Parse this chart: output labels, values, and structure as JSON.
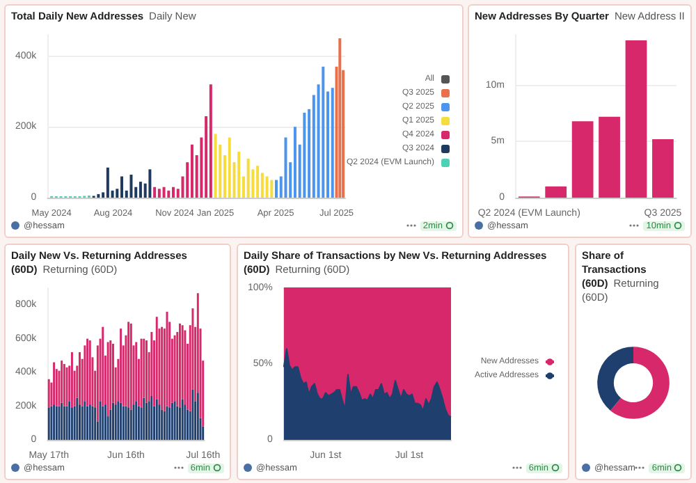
{
  "chart_data": [
    {
      "type": "bar",
      "title": "Total Daily New Addresses",
      "subtitle": "Daily New",
      "annotations": [
        "@hessam",
        "2min"
      ],
      "xlim": [
        "2024-04-25",
        "2025-07-14"
      ],
      "xticks": [
        {
          "value": "2024-05-01",
          "label": "May 2024"
        },
        {
          "value": "2024-08-01",
          "label": "Aug 2024"
        },
        {
          "value": "2024-11-01",
          "label": "Nov 2024"
        },
        {
          "value": "2025-01-01",
          "label": "Jan 2025"
        },
        {
          "value": "2025-04-01",
          "label": "Apr 2025"
        },
        {
          "value": "2025-07-01",
          "label": "Jul 2025"
        }
      ],
      "ylim": [
        0,
        460000
      ],
      "yticks": [
        {
          "value": 0,
          "label": "0"
        },
        {
          "value": 200000,
          "label": "200k"
        },
        {
          "value": 400000,
          "label": "400k"
        }
      ],
      "grid": "y",
      "legend": "right",
      "series": [
        {
          "name": "All",
          "color": "#555555"
        },
        {
          "name": "Q3 2025",
          "color": "#e8704a",
          "x": [
            "2025-07-01",
            "2025-07-06",
            "2025-07-11"
          ],
          "values": [
            370000,
            450000,
            360000
          ]
        },
        {
          "name": "Q2 2025",
          "color": "#4c94ec",
          "x": [
            "2025-04-02",
            "2025-04-09",
            "2025-04-16",
            "2025-04-23",
            "2025-04-30",
            "2025-05-07",
            "2025-05-14",
            "2025-05-21",
            "2025-05-28",
            "2025-06-04",
            "2025-06-11",
            "2025-06-18",
            "2025-06-25"
          ],
          "values": [
            50000,
            60000,
            170000,
            100000,
            200000,
            150000,
            240000,
            250000,
            290000,
            320000,
            370000,
            300000,
            310000
          ]
        },
        {
          "name": "Q1 2025",
          "color": "#f6dc3c",
          "x": [
            "2025-01-01",
            "2025-01-08",
            "2025-01-15",
            "2025-01-22",
            "2025-01-29",
            "2025-02-05",
            "2025-02-12",
            "2025-02-19",
            "2025-02-26",
            "2025-03-05",
            "2025-03-12",
            "2025-03-19",
            "2025-03-26"
          ],
          "values": [
            180000,
            150000,
            120000,
            170000,
            100000,
            130000,
            60000,
            110000,
            80000,
            90000,
            70000,
            60000,
            50000
          ]
        },
        {
          "name": "Q4 2024",
          "color": "#d6286a",
          "x": [
            "2024-10-02",
            "2024-10-09",
            "2024-10-16",
            "2024-10-23",
            "2024-10-30",
            "2024-11-06",
            "2024-11-13",
            "2024-11-20",
            "2024-11-27",
            "2024-12-04",
            "2024-12-11",
            "2024-12-18",
            "2024-12-25"
          ],
          "values": [
            30000,
            25000,
            30000,
            20000,
            30000,
            25000,
            60000,
            100000,
            150000,
            120000,
            170000,
            230000,
            320000
          ]
        },
        {
          "name": "Q3 2024",
          "color": "#1e3a5f",
          "x": [
            "2024-07-03",
            "2024-07-10",
            "2024-07-17",
            "2024-07-24",
            "2024-07-31",
            "2024-08-07",
            "2024-08-14",
            "2024-08-21",
            "2024-08-28",
            "2024-09-04",
            "2024-09-11",
            "2024-09-18",
            "2024-09-25"
          ],
          "values": [
            5000,
            10000,
            15000,
            85000,
            20000,
            25000,
            60000,
            20000,
            65000,
            30000,
            45000,
            40000,
            80000
          ]
        },
        {
          "name": "Q2 2024 (EVM Launch)",
          "color": "#4fd1b5",
          "x": [
            "2024-05-01",
            "2024-05-08",
            "2024-05-15",
            "2024-05-22",
            "2024-05-29",
            "2024-06-05",
            "2024-06-12",
            "2024-06-19",
            "2024-06-26"
          ],
          "values": [
            4000,
            4000,
            4000,
            4000,
            4000,
            4000,
            4000,
            5000,
            6000
          ]
        }
      ]
    },
    {
      "type": "bar",
      "title": "New Addresses By Quarter",
      "subtitle": "New Address II",
      "annotations": [
        "@hessam",
        "10min"
      ],
      "categories": [
        "Q2 2024 (EVM Launch)",
        null,
        null,
        null,
        null,
        "Q3 2025"
      ],
      "ylim": [
        0,
        14500000
      ],
      "yticks": [
        {
          "value": 0,
          "label": "0"
        },
        {
          "value": 5000000,
          "label": "5m"
        },
        {
          "value": 10000000,
          "label": "10m"
        }
      ],
      "grid": "y",
      "series": [
        {
          "color": "#d6286a",
          "values": [
            100000,
            1000000,
            6800000,
            7200000,
            14000000,
            5200000
          ]
        }
      ]
    },
    {
      "type": "bar",
      "title": "Daily New Vs. Returning Addresses (60D)",
      "subtitle": "Returning (60D)",
      "annotations": [
        "@hessam",
        "6min"
      ],
      "categories": [
        "May 17th",
        null,
        null,
        null,
        null,
        null,
        null,
        null,
        null,
        null,
        null,
        null,
        null,
        null,
        null,
        null,
        null,
        null,
        null,
        null,
        null,
        null,
        null,
        null,
        null,
        null,
        null,
        null,
        null,
        null,
        "Jun 16th",
        null,
        null,
        null,
        null,
        null,
        null,
        null,
        null,
        null,
        null,
        null,
        null,
        null,
        null,
        null,
        null,
        null,
        null,
        null,
        null,
        null,
        null,
        null,
        null,
        null,
        null,
        null,
        null,
        null,
        "Jul 16th"
      ],
      "ylim": [
        0,
        900000
      ],
      "yticks": [
        {
          "value": 0,
          "label": "0"
        },
        {
          "value": 200000,
          "label": "200k"
        },
        {
          "value": 400000,
          "label": "400k"
        },
        {
          "value": 600000,
          "label": "600k"
        },
        {
          "value": 800000,
          "label": "800k"
        }
      ],
      "stacked": true,
      "series": [
        {
          "color": "#1f3f6e",
          "values": [
            190000,
            200000,
            210000,
            200000,
            200000,
            220000,
            200000,
            200000,
            230000,
            190000,
            200000,
            250000,
            210000,
            200000,
            230000,
            200000,
            210000,
            200000,
            190000,
            110000,
            230000,
            200000,
            210000,
            140000,
            180000,
            220000,
            210000,
            230000,
            220000,
            200000,
            200000,
            190000,
            180000,
            210000,
            230000,
            200000,
            190000,
            250000,
            220000,
            230000,
            260000,
            200000,
            240000,
            210000,
            180000,
            170000,
            200000,
            190000,
            220000,
            230000,
            200000,
            190000,
            240000,
            210000,
            180000,
            170000,
            300000,
            230000,
            280000,
            130000,
            80000
          ]
        },
        {
          "color": "#d6286a",
          "values": [
            170000,
            140000,
            250000,
            220000,
            210000,
            250000,
            250000,
            230000,
            210000,
            330000,
            210000,
            190000,
            310000,
            280000,
            330000,
            400000,
            380000,
            290000,
            220000,
            450000,
            370000,
            470000,
            290000,
            440000,
            410000,
            350000,
            220000,
            250000,
            440000,
            360000,
            420000,
            510000,
            510000,
            350000,
            350000,
            280000,
            410000,
            350000,
            370000,
            290000,
            380000,
            390000,
            490000,
            450000,
            490000,
            490000,
            560000,
            510000,
            380000,
            390000,
            440000,
            500000,
            440000,
            440000,
            390000,
            510000,
            480000,
            440000,
            590000,
            530000,
            390000
          ]
        }
      ]
    },
    {
      "type": "area",
      "title": "Daily Share of Transactions by New Vs. Returning Addresses (60D)",
      "subtitle": "Returning (60D)",
      "annotations": [
        "@hessam",
        "6min"
      ],
      "categories": [
        null,
        null,
        null,
        null,
        null,
        null,
        null,
        null,
        null,
        null,
        null,
        null,
        null,
        null,
        null,
        "Jun 1st",
        null,
        null,
        null,
        null,
        null,
        null,
        null,
        null,
        null,
        null,
        null,
        null,
        null,
        null,
        null,
        null,
        null,
        null,
        null,
        null,
        null,
        null,
        null,
        null,
        null,
        null,
        null,
        null,
        null,
        "Jul 1st",
        null,
        null,
        null,
        null,
        null,
        null,
        null,
        null,
        null,
        null,
        null,
        null,
        null,
        null,
        null
      ],
      "ylim": [
        0,
        100
      ],
      "yticks": [
        {
          "value": 0,
          "label": "0"
        },
        {
          "value": 50,
          "label": "50%"
        },
        {
          "value": 100,
          "label": "100%"
        }
      ],
      "stacked": true,
      "legend": "right",
      "series": [
        {
          "name": "Active Addresses",
          "color": "#1f3f6e",
          "values": [
            48,
            60,
            49,
            46,
            48,
            48,
            41,
            37,
            38,
            30,
            35,
            37,
            30,
            27,
            27,
            31,
            29,
            30,
            31,
            33,
            33,
            26,
            20,
            43,
            30,
            35,
            35,
            31,
            26,
            27,
            26,
            30,
            27,
            33,
            33,
            37,
            30,
            31,
            27,
            30,
            39,
            33,
            27,
            33,
            30,
            29,
            30,
            24,
            24,
            23,
            19,
            27,
            23,
            27,
            35,
            38,
            33,
            27,
            20,
            16,
            15
          ]
        },
        {
          "name": "New Addresses",
          "color": "#d6286a",
          "values": [
            52,
            40,
            51,
            54,
            52,
            52,
            59,
            63,
            62,
            70,
            65,
            63,
            70,
            73,
            73,
            69,
            71,
            70,
            69,
            67,
            67,
            74,
            80,
            57,
            70,
            65,
            65,
            69,
            74,
            73,
            74,
            70,
            73,
            67,
            67,
            63,
            70,
            69,
            73,
            70,
            61,
            67,
            73,
            67,
            70,
            71,
            70,
            76,
            76,
            77,
            81,
            73,
            77,
            73,
            65,
            62,
            67,
            73,
            80,
            84,
            85
          ]
        }
      ]
    },
    {
      "type": "donut",
      "title": "Share of Transactions (60D)",
      "subtitle": "Returning (60D)",
      "annotations": [
        "@hessam",
        "6min"
      ],
      "categories": [
        null,
        null
      ],
      "values": [
        61,
        39
      ],
      "colors": [
        "#d6286a",
        "#1f3f6e"
      ]
    }
  ]
}
